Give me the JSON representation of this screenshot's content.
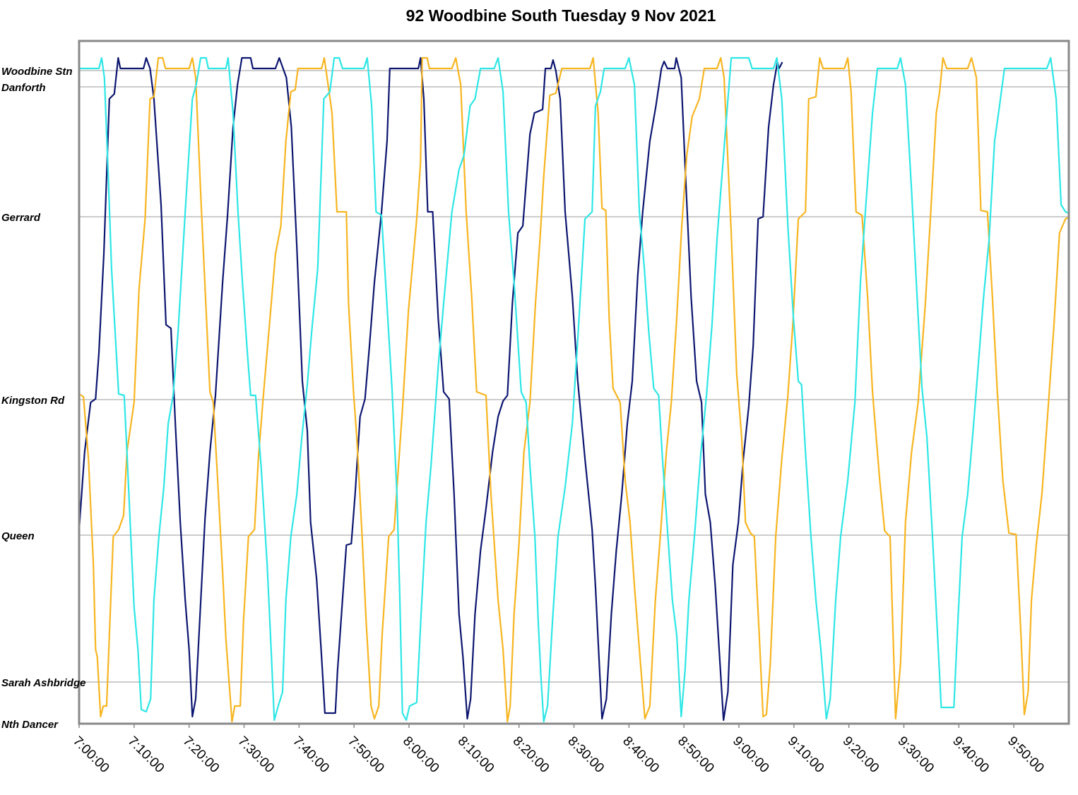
{
  "chart_data": {
    "type": "line",
    "title": "92 Woodbine South Tuesday 9 Nov 2021",
    "xlim": [
      420,
      600
    ],
    "xticks": [
      {
        "value": 420,
        "label": "7:00:00"
      },
      {
        "value": 430,
        "label": "7:10:00"
      },
      {
        "value": 440,
        "label": "7:20:00"
      },
      {
        "value": 450,
        "label": "7:30:00"
      },
      {
        "value": 460,
        "label": "7:40:00"
      },
      {
        "value": 470,
        "label": "7:50:00"
      },
      {
        "value": 480,
        "label": "8:00:00"
      },
      {
        "value": 490,
        "label": "8:10:00"
      },
      {
        "value": 500,
        "label": "8:20:00"
      },
      {
        "value": 510,
        "label": "8:30:00"
      },
      {
        "value": 520,
        "label": "8:40:00"
      },
      {
        "value": 530,
        "label": "8:50:00"
      },
      {
        "value": 540,
        "label": "9:00:00"
      },
      {
        "value": 550,
        "label": "9:10:00"
      },
      {
        "value": 560,
        "label": "9:20:00"
      },
      {
        "value": 570,
        "label": "9:30:00"
      },
      {
        "value": 580,
        "label": "9:40:00"
      },
      {
        "value": 590,
        "label": "9:50:00"
      }
    ],
    "ylim": [
      0,
      9.67
    ],
    "yticks": [
      {
        "value": 0,
        "label": "Nth Dancer"
      },
      {
        "value": 0.59,
        "label": "Sarah Ashbridge"
      },
      {
        "value": 2.67,
        "label": "Queen"
      },
      {
        "value": 4.59,
        "label": "Kingston Rd"
      },
      {
        "value": 7.18,
        "label": "Gerrard"
      },
      {
        "value": 9.02,
        "label": "Danforth"
      },
      {
        "value": 9.25,
        "label": "Woodbine Stn"
      }
    ],
    "grid": true,
    "series": [
      {
        "color": "#0c1670",
        "x": [
          420.0,
          421.0,
          422.1,
          423.0,
          423.6,
          424.5,
          425.5,
          426.4,
          427.1,
          427.5,
          431.7,
          432.2,
          432.9,
          433.6,
          434.9,
          435.8,
          436.7,
          437.5,
          438.4,
          439.3,
          440.0,
          440.6,
          441.2,
          442.0,
          442.9,
          443.8,
          444.8,
          446.1,
          447.0,
          448.0,
          448.8,
          449.6,
          451.2,
          451.6,
          455.7,
          456.4,
          457.7,
          458.6,
          459.6,
          460.6,
          461.5,
          462.1,
          463.2,
          464.1,
          464.7,
          466.6,
          467.0,
          467.9,
          468.6,
          469.5,
          470.2,
          471.1,
          472.0,
          472.8,
          473.7,
          475.0,
          476.0,
          476.5,
          481.7,
          482.1,
          482.7,
          483.4,
          484.3,
          485.3,
          486.3,
          487.3,
          488.2,
          489.1,
          489.8,
          490.6,
          491.2,
          492.0,
          493.0,
          494.0,
          495.2,
          496.2,
          497.1,
          497.9,
          498.8,
          499.8,
          500.7,
          502.0,
          502.8,
          504.3,
          504.8,
          505.8,
          506.2,
          506.7,
          507.5,
          508.4,
          509.7,
          510.7,
          512.0,
          513.3,
          513.9,
          514.6,
          515.1,
          515.9,
          516.8,
          517.7,
          518.7,
          519.7,
          520.6,
          521.6,
          522.5,
          523.8,
          524.9,
          525.9,
          526.4,
          527.0,
          528.3,
          528.6,
          529.5,
          530.3,
          531.3,
          532.3,
          533.2,
          533.9,
          534.8,
          535.7,
          536.4,
          537.2,
          538.0,
          538.9,
          539.9,
          540.8,
          541.8,
          542.6,
          543.5,
          544.4,
          545.4,
          546.3,
          547.0,
          547.3,
          547.9
        ],
        "values": [
          2.75,
          3.85,
          4.55,
          4.6,
          5.25,
          6.65,
          8.85,
          8.92,
          9.43,
          9.28,
          9.28,
          9.43,
          9.28,
          8.85,
          7.35,
          5.65,
          5.6,
          4.25,
          2.85,
          1.75,
          1.05,
          0.1,
          0.35,
          1.55,
          2.9,
          3.85,
          4.65,
          6.25,
          7.2,
          8.45,
          9.05,
          9.43,
          9.43,
          9.28,
          9.28,
          9.43,
          9.15,
          8.45,
          6.75,
          4.85,
          4.15,
          2.85,
          2.05,
          0.95,
          0.15,
          0.15,
          0.75,
          1.75,
          2.53,
          2.55,
          3.25,
          4.35,
          4.6,
          5.35,
          6.25,
          7.25,
          8.25,
          9.28,
          9.28,
          9.43,
          8.85,
          7.25,
          7.25,
          5.75,
          4.7,
          4.6,
          3.25,
          1.55,
          0.95,
          0.07,
          0.35,
          1.55,
          2.45,
          3.05,
          3.85,
          4.35,
          4.57,
          4.65,
          5.95,
          6.95,
          7.05,
          8.35,
          8.65,
          8.7,
          9.28,
          9.28,
          9.4,
          9.25,
          8.85,
          7.25,
          6.05,
          4.85,
          3.75,
          2.75,
          1.95,
          0.85,
          0.07,
          0.35,
          1.55,
          2.45,
          3.25,
          4.25,
          4.85,
          6.35,
          7.25,
          8.25,
          8.75,
          9.28,
          9.38,
          9.28,
          9.28,
          9.43,
          9.15,
          7.75,
          6.05,
          4.85,
          4.55,
          3.25,
          2.85,
          1.95,
          1.05,
          0.05,
          0.45,
          2.25,
          2.85,
          3.75,
          4.5,
          5.35,
          7.15,
          7.18,
          8.45,
          9.05,
          9.37,
          9.28,
          9.37
        ]
      },
      {
        "color": "#f7b520",
        "x": [
          420.0,
          420.8,
          421.7,
          422.6,
          423.0,
          423.3,
          423.9,
          424.4,
          425.0,
          425.5,
          426.2,
          427.2,
          428.1,
          428.7,
          430.0,
          430.9,
          432.0,
          432.9,
          433.6,
          434.4,
          435.2,
          435.7,
          440.0,
          440.6,
          441.2,
          442.2,
          443.1,
          443.8,
          444.4,
          445.2,
          446.1,
          446.7,
          447.8,
          448.3,
          449.3,
          449.9,
          450.8,
          451.9,
          452.6,
          453.4,
          454.4,
          455.7,
          456.7,
          457.6,
          458.5,
          459.3,
          459.8,
          464.1,
          464.6,
          465.1,
          466.0,
          466.9,
          468.6,
          469.0,
          469.9,
          470.5,
          471.4,
          472.2,
          473.1,
          473.7,
          474.5,
          475.1,
          476.3,
          477.3,
          477.9,
          478.8,
          479.9,
          481.4,
          482.1,
          482.4,
          483.3,
          483.7,
          487.8,
          488.5,
          489.4,
          490.4,
          491.4,
          492.3,
          494.0,
          494.9,
          496.2,
          497.1,
          497.9,
          498.4,
          499.1,
          500.0,
          500.9,
          502.0,
          503.0,
          503.9,
          504.5,
          505.6,
          506.7,
          507.8,
          512.9,
          513.5,
          514.4,
          515.1,
          515.8,
          516.4,
          517.1,
          518.4,
          519.3,
          520.2,
          521.0,
          521.9,
          522.9,
          523.8,
          524.8,
          525.7,
          526.8,
          527.7,
          528.7,
          529.6,
          530.5,
          531.5,
          532.8,
          533.7,
          536.0,
          536.7,
          537.3,
          538.6,
          539.6,
          540.5,
          541.2,
          542.1,
          542.8,
          543.7,
          544.4,
          545.0,
          545.7,
          546.7,
          547.8,
          548.9,
          549.8,
          550.8,
          552.1,
          552.7,
          554.0,
          554.7,
          555.3,
          559.2,
          559.8,
          560.4,
          561.3,
          562.4,
          563.4,
          564.3,
          565.6,
          566.5,
          567.5,
          568.5,
          569.4,
          570.3,
          571.4,
          572.6,
          573.9,
          574.9,
          575.9,
          576.5,
          577.1,
          577.8,
          581.6,
          582.3,
          583.2,
          584.0,
          585.2,
          586.1,
          587.0,
          588.0,
          589.1,
          590.4,
          591.3,
          591.9,
          592.6,
          593.2,
          594.1,
          595.1,
          596.4,
          597.3,
          598.3,
          599.4,
          600.0
        ],
        "values": [
          4.67,
          4.63,
          3.75,
          2.25,
          1.05,
          0.95,
          0.1,
          0.25,
          0.25,
          1.25,
          2.65,
          2.75,
          2.95,
          3.85,
          4.55,
          6.15,
          7.15,
          8.85,
          8.88,
          9.43,
          9.43,
          9.28,
          9.28,
          9.43,
          9.15,
          7.35,
          5.85,
          4.7,
          4.55,
          3.45,
          2.15,
          1.2,
          0.03,
          0.25,
          0.25,
          1.45,
          2.65,
          2.75,
          3.75,
          4.55,
          5.45,
          6.65,
          7.05,
          8.25,
          8.95,
          8.98,
          9.28,
          9.28,
          9.43,
          9.15,
          8.65,
          7.25,
          7.25,
          5.95,
          4.7,
          4.05,
          2.75,
          1.45,
          0.25,
          0.07,
          0.25,
          1.25,
          2.65,
          2.75,
          3.45,
          4.45,
          5.85,
          7.15,
          7.95,
          9.43,
          9.43,
          9.28,
          9.28,
          9.43,
          9.05,
          7.25,
          6.05,
          4.7,
          4.65,
          3.25,
          1.75,
          1.05,
          0.03,
          0.25,
          1.55,
          2.55,
          3.85,
          4.55,
          5.95,
          6.95,
          7.75,
          8.9,
          8.93,
          9.28,
          9.28,
          9.43,
          8.65,
          7.3,
          7.27,
          5.75,
          4.75,
          4.55,
          3.45,
          2.85,
          1.95,
          1.05,
          0.07,
          0.25,
          1.75,
          2.65,
          3.85,
          4.55,
          5.75,
          7.05,
          8.05,
          8.6,
          8.85,
          9.28,
          9.28,
          9.43,
          9.15,
          6.95,
          4.95,
          4.05,
          2.85,
          2.7,
          2.65,
          1.25,
          0.1,
          0.13,
          0.85,
          2.65,
          3.75,
          4.65,
          5.65,
          7.15,
          7.25,
          8.85,
          8.88,
          9.43,
          9.28,
          9.28,
          9.43,
          8.95,
          7.25,
          7.2,
          6.05,
          4.7,
          3.45,
          2.73,
          2.65,
          0.07,
          0.85,
          2.85,
          3.85,
          4.55,
          5.95,
          7.25,
          8.65,
          8.95,
          9.43,
          9.28,
          9.28,
          9.43,
          9.15,
          7.27,
          7.25,
          6.05,
          4.7,
          3.45,
          2.7,
          2.68,
          1.25,
          0.13,
          0.45,
          1.75,
          2.55,
          3.25,
          4.65,
          5.65,
          6.95,
          7.15,
          7.17
        ]
      },
      {
        "color": "#2ee6e6",
        "x": [
          420.0,
          423.6,
          424.1,
          424.6,
          425.3,
          425.9,
          426.4,
          427.2,
          428.2,
          428.7,
          429.4,
          430.0,
          430.7,
          431.3,
          432.2,
          433.0,
          433.6,
          434.5,
          435.4,
          436.2,
          437.1,
          438.0,
          439.3,
          440.6,
          441.3,
          442.1,
          443.1,
          443.5,
          446.7,
          447.1,
          448.0,
          448.9,
          449.7,
          450.6,
          451.2,
          452.1,
          453.1,
          454.2,
          454.8,
          455.5,
          456.2,
          457.0,
          457.6,
          458.5,
          459.6,
          460.5,
          461.5,
          462.3,
          463.4,
          464.5,
          465.6,
          466.4,
          467.3,
          467.9,
          471.8,
          472.4,
          473.2,
          474.0,
          475.0,
          475.9,
          476.9,
          477.8,
          478.3,
          478.8,
          479.5,
          480.1,
          481.4,
          482.2,
          483.1,
          484.0,
          485.3,
          486.3,
          487.8,
          489.1,
          490.0,
          491.1,
          492.0,
          493.0,
          495.5,
          496.2,
          497.1,
          498.1,
          499.1,
          500.4,
          501.3,
          502.0,
          502.9,
          503.5,
          504.0,
          504.5,
          505.2,
          506.1,
          507.1,
          508.4,
          509.7,
          510.7,
          512.0,
          513.3,
          513.9,
          514.8,
          515.5,
          519.3,
          520.0,
          521.0,
          521.9,
          522.8,
          523.6,
          524.5,
          525.4,
          526.1,
          527.0,
          527.9,
          528.7,
          529.5,
          530.2,
          530.9,
          531.9,
          533.1,
          534.1,
          535.1,
          536.0,
          536.9,
          537.9,
          538.6,
          541.8,
          542.4,
          546.3,
          546.9,
          547.8,
          548.9,
          549.9,
          550.8,
          551.4,
          552.1,
          553.1,
          554.0,
          554.9,
          555.9,
          556.6,
          557.6,
          558.5,
          559.8,
          561.1,
          562.1,
          563.0,
          564.3,
          565.2,
          568.8,
          569.4,
          570.3,
          571.4,
          572.4,
          573.3,
          574.2,
          575.2,
          576.0,
          576.8,
          579.1,
          579.7,
          580.6,
          581.6,
          582.7,
          583.5,
          584.5,
          585.5,
          586.5,
          587.4,
          588.3,
          596.0,
          596.7,
          597.7,
          598.6,
          599.4,
          600.0
        ],
        "values": [
          9.28,
          9.28,
          9.43,
          9.15,
          7.75,
          6.45,
          5.75,
          4.67,
          4.65,
          3.85,
          2.65,
          1.65,
          1.05,
          0.2,
          0.17,
          0.35,
          1.75,
          2.65,
          3.35,
          4.25,
          4.65,
          5.55,
          7.25,
          8.85,
          9.05,
          9.43,
          9.43,
          9.28,
          9.28,
          9.43,
          8.65,
          7.25,
          6.25,
          5.25,
          4.65,
          4.65,
          3.65,
          2.25,
          1.25,
          0.05,
          0.25,
          0.45,
          1.75,
          2.65,
          3.25,
          4.05,
          4.8,
          5.55,
          6.45,
          8.85,
          8.95,
          9.43,
          9.43,
          9.28,
          9.28,
          9.43,
          8.75,
          7.25,
          7.2,
          6.05,
          4.75,
          3.25,
          1.85,
          0.15,
          0.05,
          0.25,
          0.3,
          1.55,
          2.85,
          3.65,
          5.05,
          5.95,
          7.25,
          7.85,
          8.05,
          8.75,
          8.85,
          9.28,
          9.28,
          9.43,
          8.95,
          7.25,
          6.25,
          4.7,
          4.55,
          3.65,
          2.65,
          1.45,
          0.65,
          0.03,
          0.25,
          1.45,
          2.65,
          3.35,
          4.25,
          5.45,
          7.15,
          7.25,
          8.75,
          8.95,
          9.28,
          9.28,
          9.43,
          9.05,
          7.25,
          6.45,
          5.55,
          4.75,
          4.65,
          3.75,
          2.75,
          1.75,
          1.25,
          0.1,
          0.75,
          1.75,
          2.65,
          3.85,
          4.65,
          5.65,
          6.85,
          7.75,
          8.75,
          9.43,
          9.43,
          9.28,
          9.28,
          9.43,
          8.85,
          7.05,
          5.75,
          4.85,
          4.8,
          3.85,
          2.65,
          1.75,
          1.05,
          0.07,
          0.35,
          1.75,
          2.65,
          3.45,
          4.55,
          6.25,
          7.25,
          8.65,
          9.28,
          9.28,
          9.43,
          9.05,
          7.55,
          6.05,
          4.75,
          4.05,
          2.65,
          1.45,
          0.23,
          0.23,
          1.25,
          2.65,
          3.25,
          4.25,
          5.05,
          6.05,
          6.85,
          8.25,
          8.75,
          9.28,
          9.28,
          9.43,
          8.85,
          7.35,
          7.25,
          7.23
        ]
      }
    ]
  }
}
